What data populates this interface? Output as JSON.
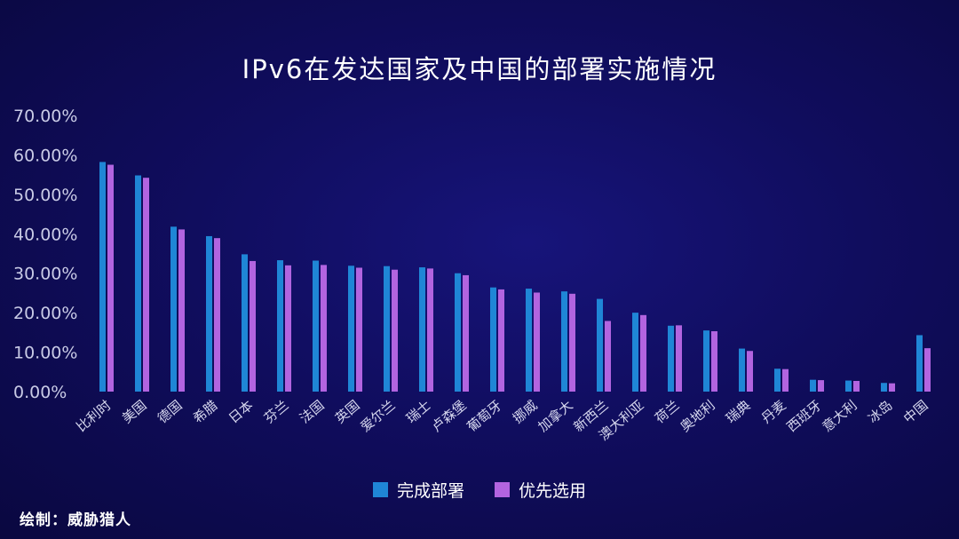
{
  "colors": {
    "series1": "#1f86d6",
    "series2": "#b264e0"
  },
  "credit": "绘制：威胁猎人",
  "chart_data": {
    "type": "bar",
    "title": "IPv6在发达国家及中国的部署实施情况",
    "xlabel": "",
    "ylabel": "",
    "ylim": [
      0,
      70
    ],
    "yticks": [
      "70.00%",
      "60.00%",
      "50.00%",
      "40.00%",
      "30.00%",
      "20.00%",
      "10.00%",
      "0.00%"
    ],
    "grid": false,
    "legend": "bottom-center",
    "categories": [
      "比利时",
      "美国",
      "德国",
      "希腊",
      "日本",
      "芬兰",
      "法国",
      "英国",
      "爱尔兰",
      "瑞士",
      "卢森堡",
      "葡萄牙",
      "挪威",
      "加拿大",
      "新西兰",
      "澳大利亚",
      "荷兰",
      "奥地利",
      "瑞典",
      "丹麦",
      "西班牙",
      "意大利",
      "冰岛",
      "中国"
    ],
    "series": [
      {
        "name": "完成部署",
        "values": [
          58.2,
          54.8,
          41.8,
          39.4,
          34.8,
          33.3,
          33.2,
          31.9,
          31.8,
          31.5,
          30.0,
          26.4,
          26.1,
          25.4,
          23.5,
          20.0,
          16.7,
          15.5,
          10.9,
          5.8,
          3.0,
          2.8,
          2.2,
          14.3
        ]
      },
      {
        "name": "优先选用",
        "values": [
          57.5,
          54.2,
          41.1,
          38.9,
          33.1,
          32.0,
          32.1,
          31.4,
          30.9,
          31.2,
          29.5,
          25.9,
          25.1,
          24.8,
          17.9,
          19.4,
          16.8,
          15.3,
          10.3,
          5.7,
          2.9,
          2.7,
          2.1,
          11.0
        ]
      }
    ]
  }
}
